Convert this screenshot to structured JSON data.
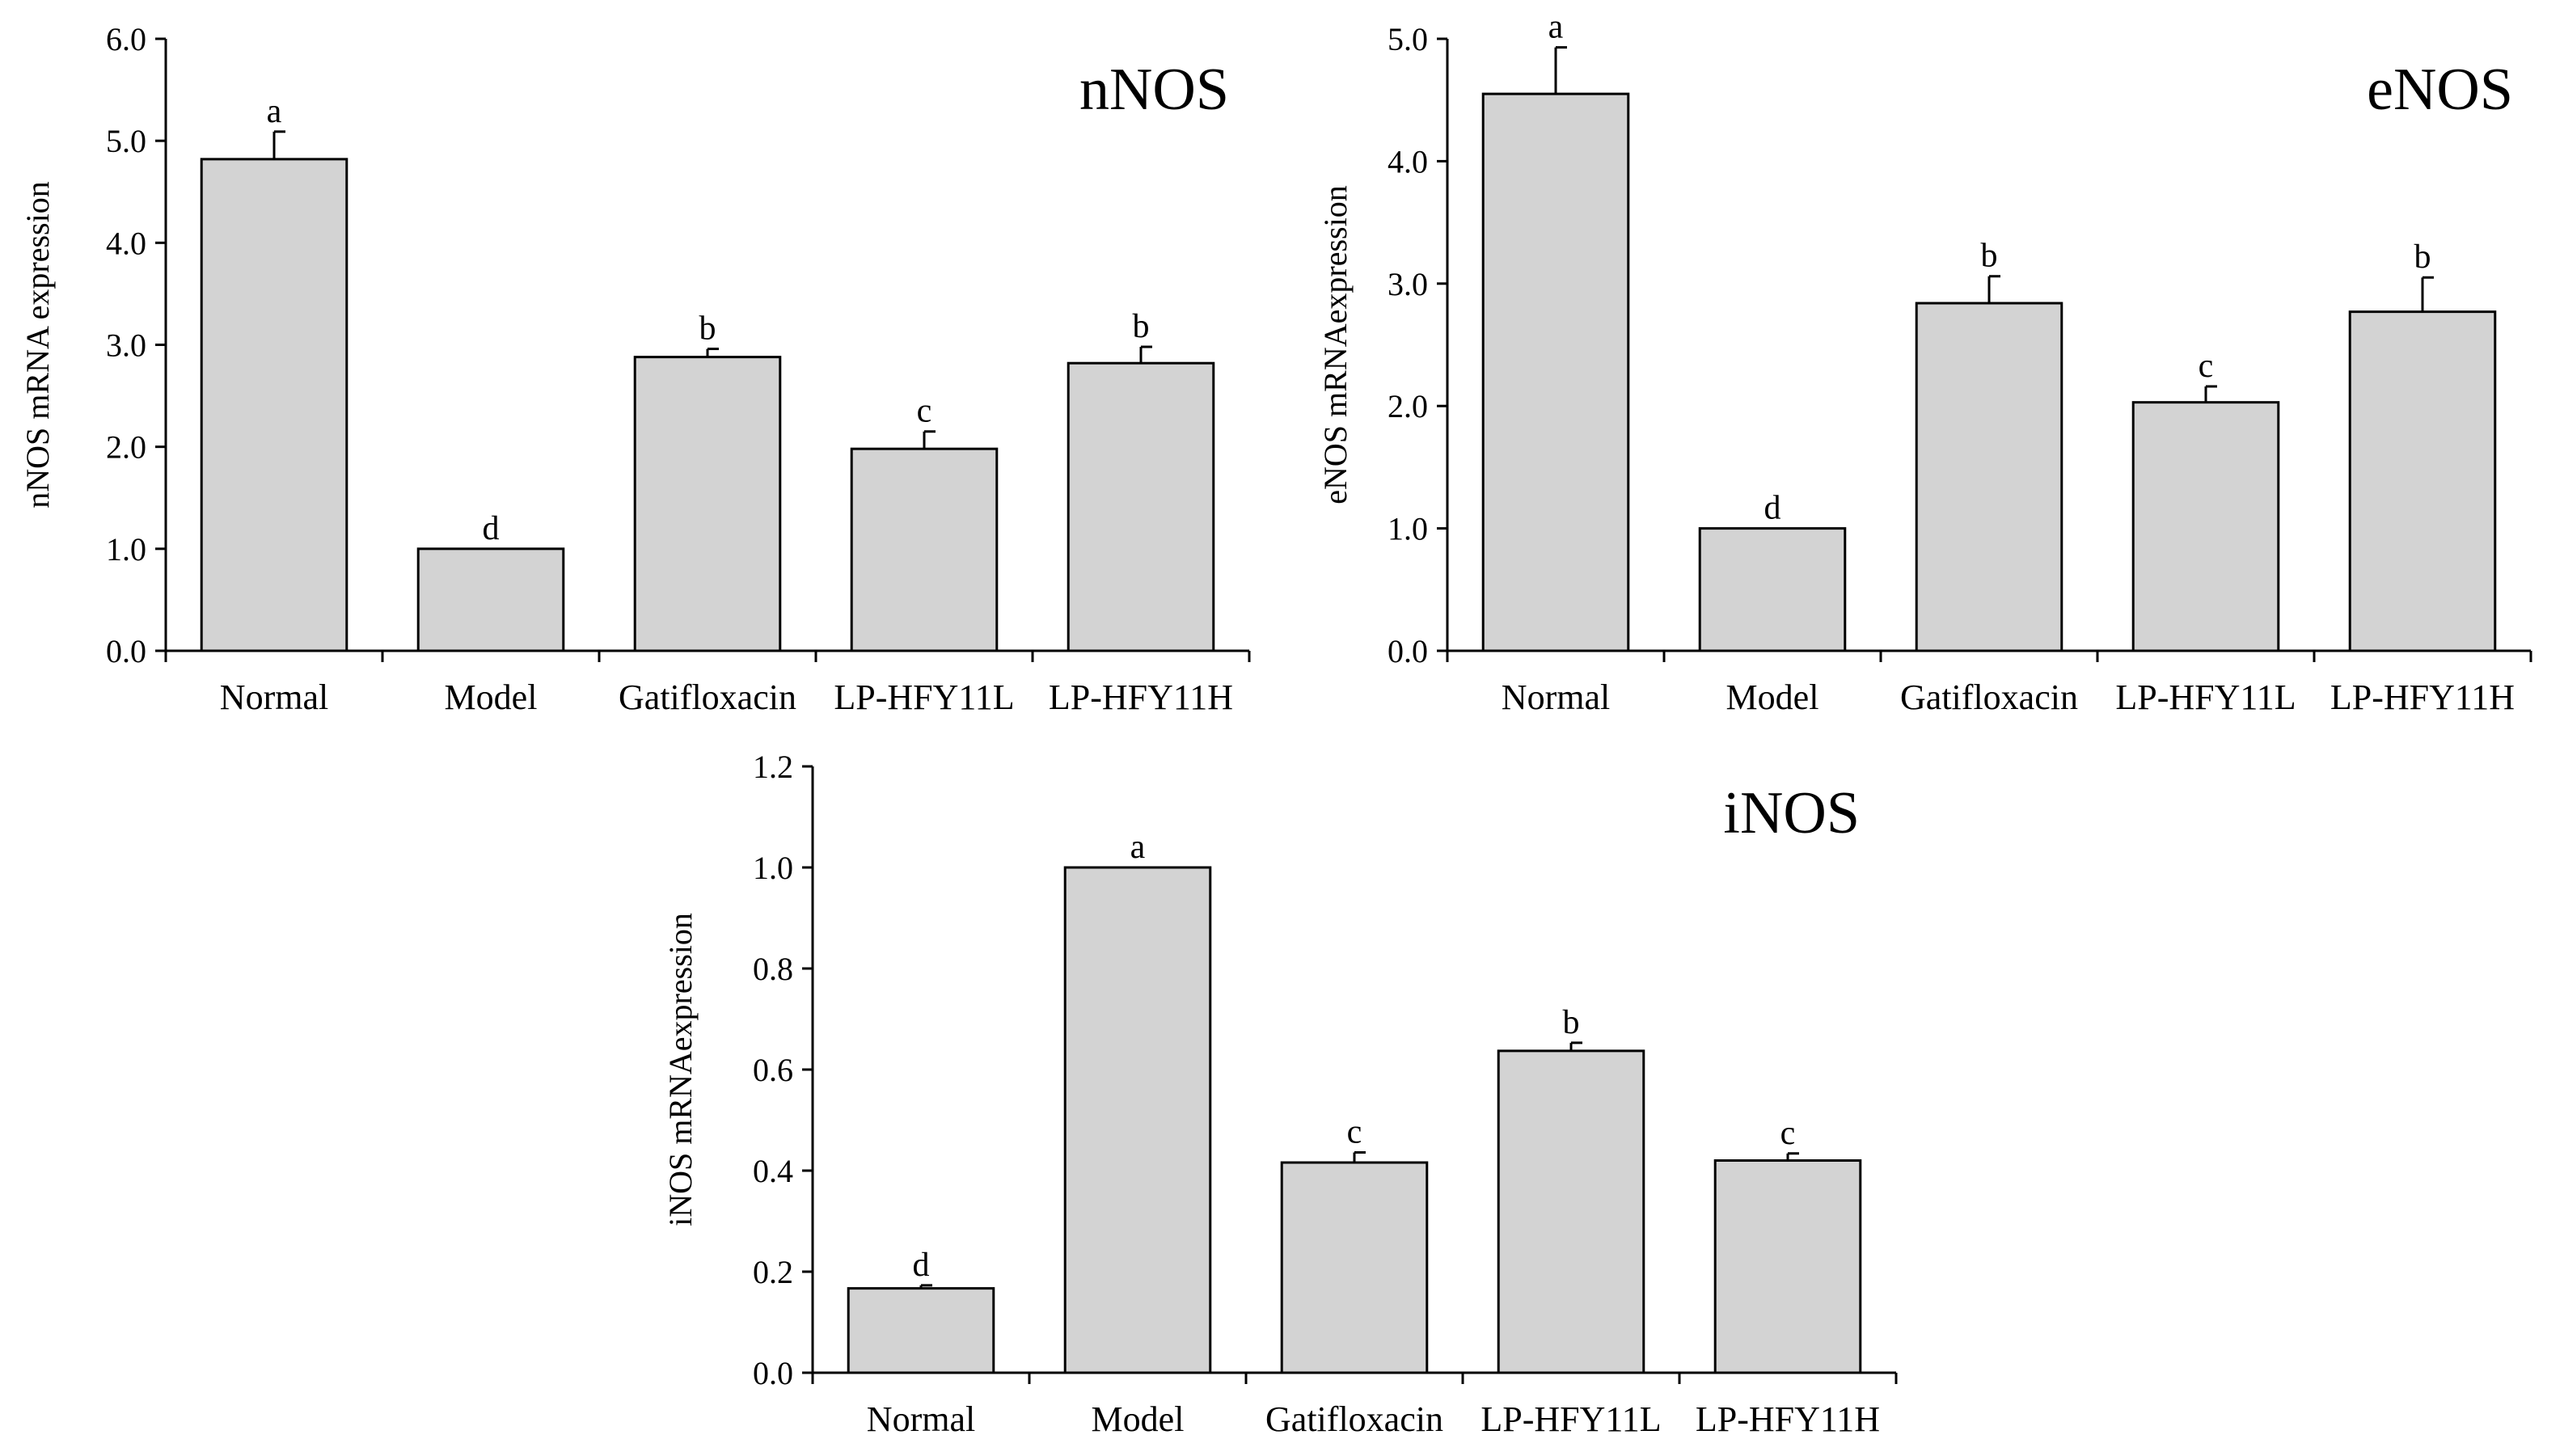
{
  "chart_data": [
    {
      "type": "bar",
      "title": "nNOS",
      "xlabel": "",
      "ylabel": "nNOS mRNA expression",
      "ylim": [
        0,
        6.0
      ],
      "yticks": [
        "0.0",
        "1.0",
        "2.0",
        "3.0",
        "4.0",
        "5.0",
        "6.0"
      ],
      "categories": [
        "Normal",
        "Model",
        "Gatifloxacin",
        "LP-HFY11L",
        "LP-HFY11H"
      ],
      "values": [
        4.82,
        1.0,
        2.88,
        1.98,
        2.82
      ],
      "errors": [
        0.27,
        0.0,
        0.08,
        0.17,
        0.16
      ],
      "significance": [
        "a",
        "d",
        "b",
        "c",
        "b"
      ],
      "bar_color": "#d3d3d3"
    },
    {
      "type": "bar",
      "title": "eNOS",
      "xlabel": "",
      "ylabel": "eNOS mRNAexpression",
      "ylim": [
        0,
        5.0
      ],
      "yticks": [
        "0.0",
        "1.0",
        "2.0",
        "3.0",
        "4.0",
        "5.0"
      ],
      "categories": [
        "Normal",
        "Model",
        "Gatifloxacin",
        "LP-HFY11L",
        "LP-HFY11H"
      ],
      "values": [
        4.55,
        1.0,
        2.84,
        2.03,
        2.77
      ],
      "errors": [
        0.38,
        0.0,
        0.22,
        0.13,
        0.28
      ],
      "significance": [
        "a",
        "d",
        "b",
        "c",
        "b"
      ],
      "bar_color": "#d3d3d3"
    },
    {
      "type": "bar",
      "title": "iNOS",
      "xlabel": "",
      "ylabel": "iNOS mRNAexpression",
      "ylim": [
        0,
        1.2
      ],
      "yticks": [
        "0.0",
        "0.2",
        "0.4",
        "0.6",
        "0.8",
        "1.0",
        "1.2"
      ],
      "categories": [
        "Normal",
        "Model",
        "Gatifloxacin",
        "LP-HFY11L",
        "LP-HFY11H"
      ],
      "values": [
        0.167,
        1.0,
        0.416,
        0.637,
        0.42
      ],
      "errors": [
        0.006,
        0.0,
        0.02,
        0.016,
        0.014
      ],
      "significance": [
        "d",
        "a",
        "c",
        "b",
        "c"
      ],
      "bar_color": "#d3d3d3"
    }
  ]
}
